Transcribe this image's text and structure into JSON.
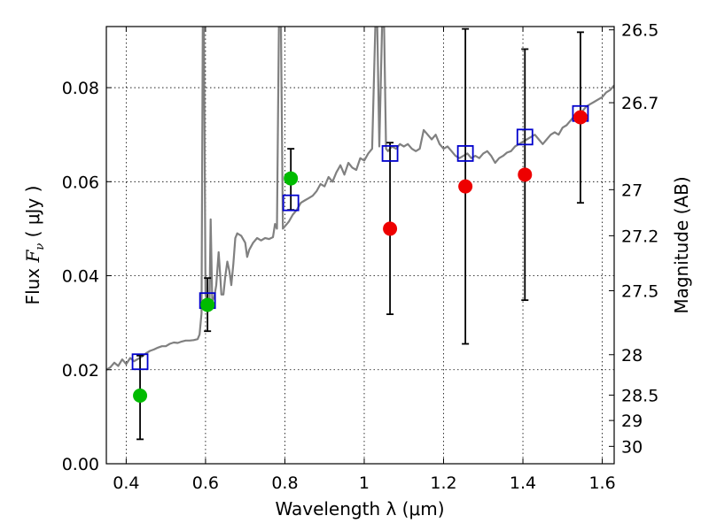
{
  "chart_data": {
    "type": "scatter",
    "xlabel": "Wavelength  λ (μm)",
    "ylabel": "Flux  F_ν  ( μJy )",
    "ylabel_parts": {
      "prefix": "Flux  ",
      "symbol": "F",
      "subscript": "ν",
      "unit": "  ( μJy )"
    },
    "y2label": "Magnitude (AB)",
    "xlim": [
      0.35,
      1.63
    ],
    "ylim": [
      0.0,
      0.093
    ],
    "grid": true,
    "x_ticks": [
      {
        "value": 0.4,
        "label": "0.4"
      },
      {
        "value": 0.6,
        "label": "0.6"
      },
      {
        "value": 0.8,
        "label": "0.8"
      },
      {
        "value": 1.0,
        "label": "1"
      },
      {
        "value": 1.2,
        "label": "1.2"
      },
      {
        "value": 1.4,
        "label": "1.4"
      },
      {
        "value": 1.6,
        "label": "1.6"
      }
    ],
    "y_ticks": [
      {
        "value": 0.0,
        "label": "0.00"
      },
      {
        "value": 0.02,
        "label": "0.02"
      },
      {
        "value": 0.04,
        "label": "0.04"
      },
      {
        "value": 0.06,
        "label": "0.06"
      },
      {
        "value": 0.08,
        "label": "0.08"
      }
    ],
    "y2_ticks": [
      {
        "label": "26.5",
        "flux": 0.0923
      },
      {
        "label": "26.7",
        "flux": 0.0768
      },
      {
        "label": "27",
        "flux": 0.0583
      },
      {
        "label": "27.2",
        "flux": 0.0485
      },
      {
        "label": "27.5",
        "flux": 0.0368
      },
      {
        "label": "28",
        "flux": 0.0232
      },
      {
        "label": "28.5",
        "flux": 0.0146
      },
      {
        "label": "29",
        "flux": 0.0092
      },
      {
        "label": "30",
        "flux": 0.0037
      }
    ],
    "series": [
      {
        "kind": "line",
        "color": "#808080",
        "points": [
          [
            0.35,
            0.02
          ],
          [
            0.36,
            0.0205
          ],
          [
            0.37,
            0.0215
          ],
          [
            0.38,
            0.0208
          ],
          [
            0.39,
            0.0222
          ],
          [
            0.4,
            0.0212
          ],
          [
            0.41,
            0.0225
          ],
          [
            0.42,
            0.0218
          ],
          [
            0.43,
            0.0223
          ],
          [
            0.44,
            0.0228
          ],
          [
            0.45,
            0.0235
          ],
          [
            0.46,
            0.024
          ],
          [
            0.47,
            0.0243
          ],
          [
            0.48,
            0.0247
          ],
          [
            0.49,
            0.025
          ],
          [
            0.5,
            0.025
          ],
          [
            0.51,
            0.0255
          ],
          [
            0.52,
            0.0258
          ],
          [
            0.53,
            0.0257
          ],
          [
            0.54,
            0.026
          ],
          [
            0.55,
            0.0262
          ],
          [
            0.56,
            0.0262
          ],
          [
            0.57,
            0.0263
          ],
          [
            0.58,
            0.0265
          ],
          [
            0.585,
            0.0275
          ],
          [
            0.59,
            0.032
          ],
          [
            0.593,
            0.093
          ],
          [
            0.596,
            0.093
          ],
          [
            0.6,
            0.036
          ],
          [
            0.605,
            0.0338
          ],
          [
            0.61,
            0.034
          ],
          [
            0.613,
            0.052
          ],
          [
            0.617,
            0.0345
          ],
          [
            0.622,
            0.0355
          ],
          [
            0.627,
            0.038
          ],
          [
            0.633,
            0.045
          ],
          [
            0.637,
            0.04
          ],
          [
            0.64,
            0.036
          ],
          [
            0.645,
            0.036
          ],
          [
            0.65,
            0.04
          ],
          [
            0.655,
            0.043
          ],
          [
            0.66,
            0.041
          ],
          [
            0.665,
            0.038
          ],
          [
            0.67,
            0.0425
          ],
          [
            0.675,
            0.048
          ],
          [
            0.68,
            0.049
          ],
          [
            0.69,
            0.0485
          ],
          [
            0.7,
            0.047
          ],
          [
            0.705,
            0.044
          ],
          [
            0.71,
            0.0455
          ],
          [
            0.72,
            0.047
          ],
          [
            0.73,
            0.048
          ],
          [
            0.74,
            0.0475
          ],
          [
            0.75,
            0.048
          ],
          [
            0.76,
            0.0478
          ],
          [
            0.77,
            0.0482
          ],
          [
            0.775,
            0.051
          ],
          [
            0.78,
            0.05
          ],
          [
            0.785,
            0.093
          ],
          [
            0.79,
            0.093
          ],
          [
            0.795,
            0.05
          ],
          [
            0.8,
            0.0505
          ],
          [
            0.81,
            0.0515
          ],
          [
            0.82,
            0.053
          ],
          [
            0.83,
            0.054
          ],
          [
            0.84,
            0.0555
          ],
          [
            0.85,
            0.056
          ],
          [
            0.86,
            0.0565
          ],
          [
            0.87,
            0.057
          ],
          [
            0.88,
            0.058
          ],
          [
            0.89,
            0.0595
          ],
          [
            0.9,
            0.059
          ],
          [
            0.91,
            0.061
          ],
          [
            0.92,
            0.06
          ],
          [
            0.93,
            0.062
          ],
          [
            0.94,
            0.0635
          ],
          [
            0.95,
            0.0615
          ],
          [
            0.96,
            0.064
          ],
          [
            0.97,
            0.063
          ],
          [
            0.98,
            0.0625
          ],
          [
            0.99,
            0.065
          ],
          [
            1.0,
            0.0645
          ],
          [
            1.01,
            0.066
          ],
          [
            1.02,
            0.067
          ],
          [
            1.028,
            0.093
          ],
          [
            1.033,
            0.093
          ],
          [
            1.038,
            0.0675
          ],
          [
            1.045,
            0.093
          ],
          [
            1.05,
            0.093
          ],
          [
            1.055,
            0.067
          ],
          [
            1.06,
            0.0665
          ],
          [
            1.07,
            0.0675
          ],
          [
            1.08,
            0.067
          ],
          [
            1.09,
            0.068
          ],
          [
            1.1,
            0.0675
          ],
          [
            1.11,
            0.068
          ],
          [
            1.12,
            0.067
          ],
          [
            1.13,
            0.0665
          ],
          [
            1.14,
            0.067
          ],
          [
            1.15,
            0.071
          ],
          [
            1.16,
            0.07
          ],
          [
            1.17,
            0.069
          ],
          [
            1.18,
            0.07
          ],
          [
            1.19,
            0.068
          ],
          [
            1.2,
            0.067
          ],
          [
            1.21,
            0.0675
          ],
          [
            1.22,
            0.0665
          ],
          [
            1.23,
            0.0655
          ],
          [
            1.24,
            0.065
          ],
          [
            1.25,
            0.0655
          ],
          [
            1.26,
            0.066
          ],
          [
            1.27,
            0.065
          ],
          [
            1.28,
            0.0655
          ],
          [
            1.29,
            0.065
          ],
          [
            1.3,
            0.066
          ],
          [
            1.31,
            0.0665
          ],
          [
            1.32,
            0.0655
          ],
          [
            1.33,
            0.064
          ],
          [
            1.34,
            0.065
          ],
          [
            1.35,
            0.0655
          ],
          [
            1.36,
            0.0662
          ],
          [
            1.37,
            0.0665
          ],
          [
            1.38,
            0.0675
          ],
          [
            1.39,
            0.068
          ],
          [
            1.4,
            0.0685
          ],
          [
            1.41,
            0.069
          ],
          [
            1.42,
            0.0695
          ],
          [
            1.43,
            0.07
          ],
          [
            1.44,
            0.069
          ],
          [
            1.45,
            0.068
          ],
          [
            1.46,
            0.069
          ],
          [
            1.47,
            0.07
          ],
          [
            1.48,
            0.0705
          ],
          [
            1.49,
            0.07
          ],
          [
            1.5,
            0.0715
          ],
          [
            1.51,
            0.072
          ],
          [
            1.52,
            0.073
          ],
          [
            1.53,
            0.074
          ],
          [
            1.54,
            0.0745
          ],
          [
            1.55,
            0.075
          ],
          [
            1.56,
            0.076
          ],
          [
            1.57,
            0.0765
          ],
          [
            1.58,
            0.077
          ],
          [
            1.59,
            0.0775
          ],
          [
            1.6,
            0.078
          ],
          [
            1.61,
            0.079
          ],
          [
            1.62,
            0.0795
          ],
          [
            1.63,
            0.0805
          ]
        ]
      },
      {
        "kind": "open-squares",
        "color": "#0000cc",
        "points": [
          [
            0.435,
            0.0217
          ],
          [
            0.605,
            0.0347
          ],
          [
            0.815,
            0.0555
          ],
          [
            1.065,
            0.066
          ],
          [
            1.255,
            0.066
          ],
          [
            1.405,
            0.0695
          ],
          [
            1.545,
            0.0745
          ]
        ]
      },
      {
        "kind": "filled-circles",
        "color": "#00bb00",
        "points": [
          {
            "x": 0.435,
            "y": 0.0145,
            "yerr_low": 0.0052,
            "yerr_high": 0.023
          },
          {
            "x": 0.605,
            "y": 0.0338,
            "yerr_low": 0.0282,
            "yerr_high": 0.0395
          },
          {
            "x": 0.815,
            "y": 0.0607,
            "yerr_low": 0.054,
            "yerr_high": 0.067
          }
        ]
      },
      {
        "kind": "filled-circles",
        "color": "#ee0000",
        "points": [
          {
            "x": 1.065,
            "y": 0.05,
            "yerr_low": 0.0318,
            "yerr_high": 0.0683
          },
          {
            "x": 1.255,
            "y": 0.059,
            "yerr_low": 0.0255,
            "yerr_high": 0.0925
          },
          {
            "x": 1.405,
            "y": 0.0615,
            "yerr_low": 0.0348,
            "yerr_high": 0.0882
          },
          {
            "x": 1.545,
            "y": 0.0737,
            "yerr_low": 0.0555,
            "yerr_high": 0.0918
          }
        ]
      }
    ]
  }
}
